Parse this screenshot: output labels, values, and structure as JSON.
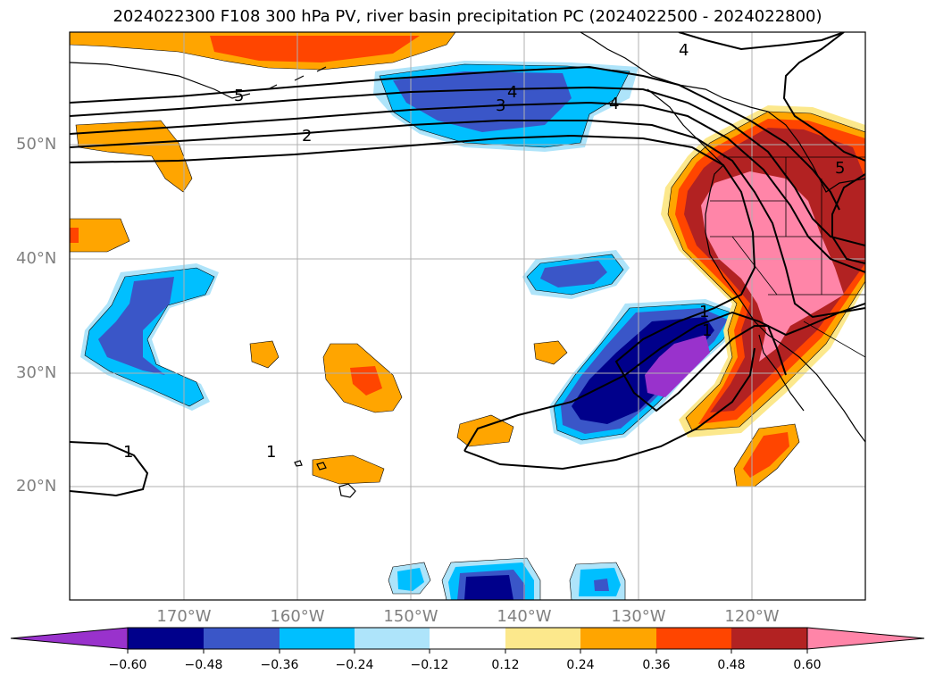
{
  "title": "2024022300 F108 300 hPa PV, river basin precipitation PC (2024022500 - 2024022800)",
  "lat_labels": [
    "50°N",
    "40°N",
    "30°N",
    "20°N"
  ],
  "lon_labels": [
    "170°W",
    "160°W",
    "150°W",
    "140°W",
    "130°W",
    "120°W"
  ],
  "pv_contour_labels": [
    "5",
    "4",
    "4",
    "3",
    "2",
    "1",
    "1",
    "1",
    "1",
    "4",
    "5"
  ],
  "colorbar": {
    "ticks": [
      "−0.60",
      "−0.48",
      "−0.36",
      "−0.24",
      "−0.12",
      "0.12",
      "0.24",
      "0.36",
      "0.48",
      "0.60"
    ],
    "colors": [
      "#9932cc",
      "#00008b",
      "#3a56c8",
      "#00bfff",
      "#aee4fa",
      "#ffffff",
      "#fce88c",
      "#ffa500",
      "#ff4500",
      "#b22222",
      "#ff85a8"
    ]
  },
  "colors": {
    "land_outline": "#000000",
    "grid": "#b0b0b0",
    "axis_label": "#808080"
  }
}
